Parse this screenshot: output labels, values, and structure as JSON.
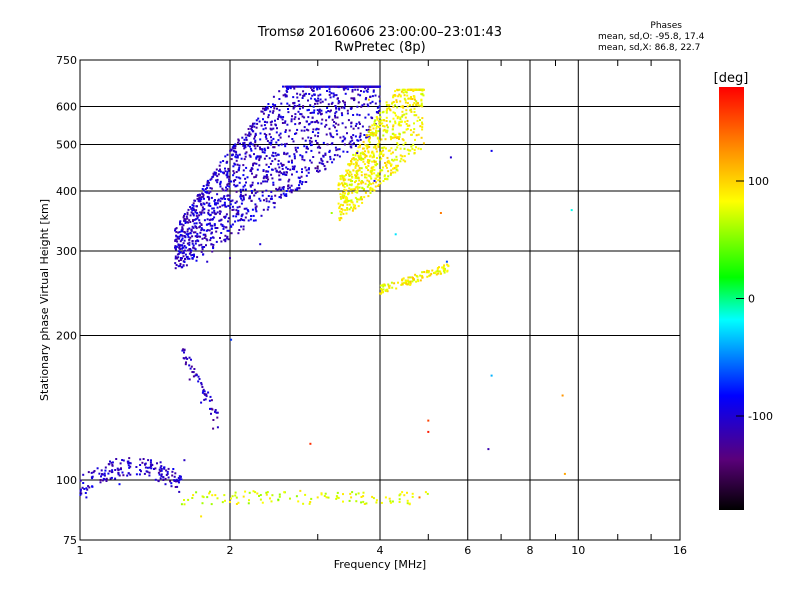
{
  "header": {
    "title_line1": "Tromsø 20160606 23:00:00–23:01:43",
    "title_line2": "RwPretec (8p)"
  },
  "phases": {
    "heading": "Phases",
    "line_o": "mean, sd,O: -95.8, 17.4",
    "line_x": "mean, sd,X:  86.8, 22.7"
  },
  "chart_data": {
    "type": "scatter",
    "xlabel": "Frequency [MHz]",
    "ylabel": "Stationary phase Virtual Height [km]",
    "x_scale": "log",
    "y_scale": "log",
    "xlim": [
      1,
      16
    ],
    "ylim": [
      75,
      750
    ],
    "x_ticks": [
      1,
      2,
      4,
      6,
      8,
      10,
      16
    ],
    "x_minor_ticks": [
      3,
      5,
      7,
      9,
      12,
      14
    ],
    "y_ticks": [
      75,
      100,
      200,
      300,
      400,
      500,
      600,
      750
    ],
    "grid": true,
    "color_quantity": "phase",
    "colorbar": {
      "label": "[deg]",
      "min": -180,
      "max": 180,
      "ticks": [
        100,
        0,
        -100
      ],
      "palette": "rainbow: black → purple → blue → cyan → green → yellow → orange → red"
    },
    "clusters": [
      {
        "description": "E-layer low trace",
        "x_range": [
          1.0,
          1.6
        ],
        "y_range": [
          90,
          110
        ],
        "phase": -105
      },
      {
        "description": "Sporadic E",
        "x_range": [
          1.6,
          5.0
        ],
        "y_range": [
          88,
          95
        ],
        "phase": 75
      },
      {
        "description": "Low rising trace",
        "x_range": [
          1.6,
          1.9
        ],
        "y_range": [
          125,
          180
        ],
        "phase": -110
      },
      {
        "description": "F-layer O-mode",
        "x_range": [
          1.55,
          4.0
        ],
        "y_range": [
          265,
          650
        ],
        "phase": -105
      },
      {
        "description": "F-layer X-mode",
        "x_range": [
          3.3,
          4.9
        ],
        "y_range": [
          340,
          650
        ],
        "phase": 85
      },
      {
        "description": "Echo trace",
        "x_range": [
          4.0,
          5.5
        ],
        "y_range": [
          245,
          280
        ],
        "phase": 88
      }
    ],
    "points": [
      {
        "x": 1.03,
        "y": 92,
        "phase": -100
      },
      {
        "x": 1.1,
        "y": 100,
        "phase": -110
      },
      {
        "x": 1.2,
        "y": 98,
        "phase": -95
      },
      {
        "x": 1.35,
        "y": 103,
        "phase": -105
      },
      {
        "x": 1.5,
        "y": 104,
        "phase": -100
      },
      {
        "x": 1.62,
        "y": 110,
        "phase": -110
      },
      {
        "x": 1.66,
        "y": 162,
        "phase": -110
      },
      {
        "x": 1.75,
        "y": 145,
        "phase": -105
      },
      {
        "x": 1.85,
        "y": 128,
        "phase": -115
      },
      {
        "x": 2.01,
        "y": 196,
        "phase": -60
      },
      {
        "x": 1.6,
        "y": 308,
        "phase": -95
      },
      {
        "x": 1.8,
        "y": 285,
        "phase": -105
      },
      {
        "x": 2.0,
        "y": 290,
        "phase": -100
      },
      {
        "x": 2.3,
        "y": 310,
        "phase": -90
      },
      {
        "x": 2.6,
        "y": 400,
        "phase": -80
      },
      {
        "x": 2.7,
        "y": 600,
        "phase": -95
      },
      {
        "x": 3.0,
        "y": 450,
        "phase": -130
      },
      {
        "x": 3.3,
        "y": 550,
        "phase": -125
      },
      {
        "x": 3.6,
        "y": 480,
        "phase": -120
      },
      {
        "x": 3.9,
        "y": 420,
        "phase": -110
      },
      {
        "x": 3.2,
        "y": 360,
        "phase": 60
      },
      {
        "x": 3.6,
        "y": 380,
        "phase": 80
      },
      {
        "x": 3.9,
        "y": 460,
        "phase": 90
      },
      {
        "x": 3.8,
        "y": 620,
        "phase": 95
      },
      {
        "x": 4.4,
        "y": 490,
        "phase": 70
      },
      {
        "x": 4.7,
        "y": 620,
        "phase": 100
      },
      {
        "x": 4.05,
        "y": 246,
        "phase": 80
      },
      {
        "x": 4.6,
        "y": 255,
        "phase": 90
      },
      {
        "x": 5.2,
        "y": 268,
        "phase": 85
      },
      {
        "x": 5.45,
        "y": 285,
        "phase": -80
      },
      {
        "x": 4.3,
        "y": 325,
        "phase": -10
      },
      {
        "x": 5.3,
        "y": 360,
        "phase": 150
      },
      {
        "x": 5.55,
        "y": 470,
        "phase": -120
      },
      {
        "x": 6.7,
        "y": 485,
        "phase": -110
      },
      {
        "x": 6.7,
        "y": 165,
        "phase": -30
      },
      {
        "x": 6.6,
        "y": 116,
        "phase": -110
      },
      {
        "x": 9.3,
        "y": 150,
        "phase": 140
      },
      {
        "x": 9.4,
        "y": 103,
        "phase": 130
      },
      {
        "x": 9.7,
        "y": 365,
        "phase": -20
      },
      {
        "x": 5.0,
        "y": 133,
        "phase": 160
      },
      {
        "x": 5.0,
        "y": 126,
        "phase": 170
      },
      {
        "x": 2.9,
        "y": 119,
        "phase": 170
      },
      {
        "x": 2.0,
        "y": 90,
        "phase": 70
      },
      {
        "x": 2.5,
        "y": 91,
        "phase": 30
      },
      {
        "x": 3.0,
        "y": 92,
        "phase": 80
      },
      {
        "x": 3.5,
        "y": 92,
        "phase": 100
      },
      {
        "x": 4.8,
        "y": 92,
        "phase": 150
      },
      {
        "x": 1.75,
        "y": 84,
        "phase": 95
      }
    ]
  }
}
